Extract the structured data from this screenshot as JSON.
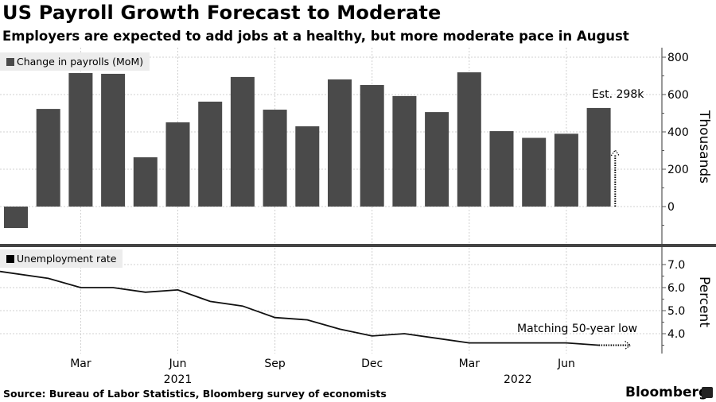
{
  "header": {
    "title": "US Payroll Growth Forecast to Moderate",
    "subtitle": "Employers are expected to add jobs at a healthy, but more moderate pace in August"
  },
  "footer": {
    "source": "Source: Bureau of Labor Statistics, Bloomberg survey of economists",
    "brand": "Bloomberg"
  },
  "chart_data": [
    {
      "type": "bar",
      "title": "Change in payrolls (MoM)",
      "legend": "Change in payrolls (MoM)",
      "legend_position": "top-left",
      "ylabel": "Thousands",
      "ylim": [
        -200,
        850
      ],
      "yticks": [
        0,
        200,
        400,
        600,
        800
      ],
      "grid": true,
      "color": "#4a4a4a",
      "categories": [
        "2021-01",
        "2021-02",
        "2021-03",
        "2021-04",
        "2021-05",
        "2021-06",
        "2021-07",
        "2021-08",
        "2021-09",
        "2021-10",
        "2021-11",
        "2021-12",
        "2022-01",
        "2022-02",
        "2022-03",
        "2022-04",
        "2022-05",
        "2022-06",
        "2022-07"
      ],
      "values": [
        -115,
        523,
        715,
        711,
        264,
        451,
        562,
        694,
        519,
        430,
        681,
        651,
        592,
        506,
        719,
        404,
        368,
        390,
        528
      ],
      "forecast": {
        "category": "2022-08",
        "value": 298,
        "label": "Est. 298k"
      }
    },
    {
      "type": "line",
      "title": "Unemployment rate",
      "legend": "Unemployment rate",
      "legend_position": "top-left",
      "ylabel": "Percent",
      "ylim": [
        3.2,
        7.5
      ],
      "yticks": [
        "7.0",
        "6.0",
        "5.0",
        "4.0"
      ],
      "grid": true,
      "color": "#000000",
      "x": [
        "2021-01",
        "2021-02",
        "2021-03",
        "2021-04",
        "2021-05",
        "2021-06",
        "2021-07",
        "2021-08",
        "2021-09",
        "2021-10",
        "2021-11",
        "2021-12",
        "2022-01",
        "2022-02",
        "2022-03",
        "2022-04",
        "2022-05",
        "2022-06",
        "2022-07"
      ],
      "values": [
        6.7,
        6.4,
        6.0,
        6.0,
        5.8,
        5.9,
        5.4,
        5.2,
        4.7,
        4.6,
        4.2,
        3.9,
        4.0,
        3.8,
        3.6,
        3.6,
        3.6,
        3.6,
        3.5
      ],
      "annotation": "Matching 50-year low"
    }
  ],
  "xaxis": {
    "ticks": [
      {
        "label": "Mar",
        "month": 2
      },
      {
        "label": "Jun",
        "month": 5
      },
      {
        "label": "Sep",
        "month": 8
      },
      {
        "label": "Dec",
        "month": 11
      },
      {
        "label": "Mar",
        "month": 14
      },
      {
        "label": "Jun",
        "month": 17
      }
    ],
    "years": [
      {
        "label": "2021",
        "month": 5
      },
      {
        "label": "2022",
        "month": 15.5
      }
    ]
  }
}
